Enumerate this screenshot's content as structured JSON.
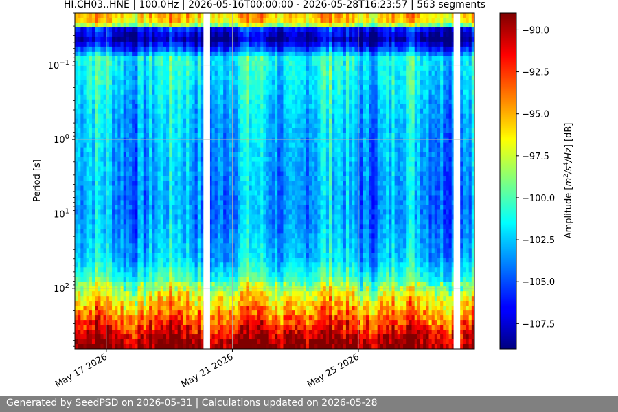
{
  "chart_data": {
    "type": "heatmap",
    "title": "HI.CH03..HNE | 100.0Hz | 2026-05-16T00:00:00 - 2026-05-28T16:23:57 | 563 segments",
    "xlabel": "",
    "ylabel": "Period [s]",
    "y_scale": "log",
    "y_inverted": true,
    "ylim": [
      0.02,
      650
    ],
    "xlim": [
      "2026-05-16T00:00:00",
      "2026-05-28T16:23:57"
    ],
    "x_tick_labels": [
      {
        "date": "2026-05-17",
        "label": "May 17 2026"
      },
      {
        "date": "2026-05-21",
        "label": "May 21 2026"
      },
      {
        "date": "2026-05-25",
        "label": "May 25 2026"
      }
    ],
    "y_ticks": [
      {
        "value": 0.1,
        "base": "10",
        "exp": "−1"
      },
      {
        "value": 1,
        "base": "10",
        "exp": "0"
      },
      {
        "value": 10,
        "base": "10",
        "exp": "1"
      },
      {
        "value": 100,
        "base": "10",
        "exp": "2"
      }
    ],
    "grid": true,
    "colormap": "jet",
    "colorbar": {
      "label_parts": [
        "Amplitude [",
        "m",
        "2",
        "/",
        "s",
        "4",
        "/",
        "Hz",
        "] [dB]"
      ],
      "range": [
        -109,
        -89
      ],
      "ticks": [
        {
          "value": -90.0,
          "label": "−90.0"
        },
        {
          "value": -92.5,
          "label": "−92.5"
        },
        {
          "value": -95.0,
          "label": "−95.0"
        },
        {
          "value": -97.5,
          "label": "−97.5"
        },
        {
          "value": -100.0,
          "label": "−100.0"
        },
        {
          "value": -102.5,
          "label": "−102.5"
        },
        {
          "value": -105.0,
          "label": "−105.0"
        },
        {
          "value": -107.5,
          "label": "−107.5"
        }
      ]
    },
    "data_gaps": [
      {
        "start": "2026-05-20T02:00:00",
        "end": "2026-05-20T07:00:00"
      },
      {
        "start": "2026-05-28T00:30:00",
        "end": "2026-05-28T05:30:00"
      }
    ],
    "period_profile": [
      {
        "period": 0.02,
        "db": -95
      },
      {
        "period": 0.028,
        "db": -96
      },
      {
        "period": 0.033,
        "db": -106
      },
      {
        "period": 0.045,
        "db": -108
      },
      {
        "period": 0.06,
        "db": -105
      },
      {
        "period": 0.08,
        "db": -101
      },
      {
        "period": 0.15,
        "db": -101.5
      },
      {
        "period": 0.5,
        "db": -102.5
      },
      {
        "period": 2,
        "db": -103
      },
      {
        "period": 10,
        "db": -103.5
      },
      {
        "period": 40,
        "db": -102.5
      },
      {
        "period": 80,
        "db": -100
      },
      {
        "period": 130,
        "db": -97
      },
      {
        "period": 200,
        "db": -95
      },
      {
        "period": 300,
        "db": -93
      },
      {
        "period": 420,
        "db": -91
      },
      {
        "period": 650,
        "db": -89
      }
    ]
  },
  "footer": {
    "text": "Generated by SeedPSD on 2026-05-31 | Calculations updated on 2026-05-28"
  },
  "colors": {
    "footer_bg": "#808080",
    "footer_text": "#ffffff",
    "grid": "#b0b0b0"
  }
}
